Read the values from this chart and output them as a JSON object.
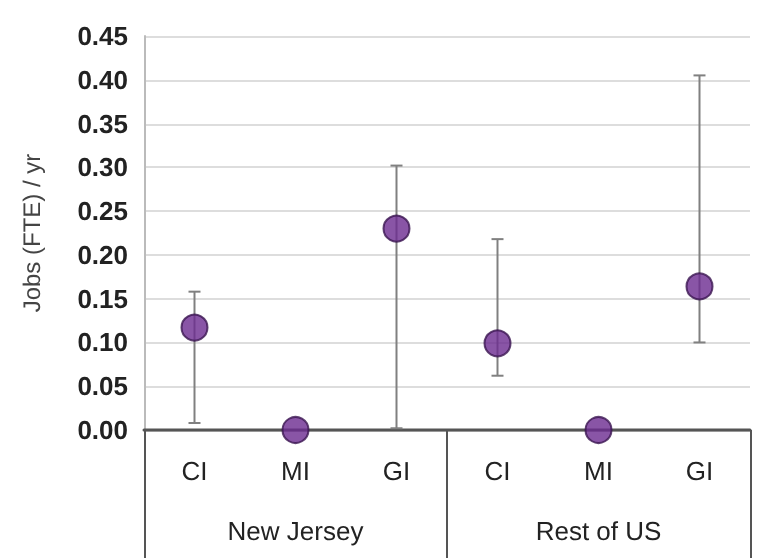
{
  "chart_data": {
    "type": "scatter",
    "ylabel": "Jobs (FTE) / yr",
    "categories": [
      "CI",
      "MI",
      "GI",
      "CI",
      "MI",
      "GI"
    ],
    "series": [
      {
        "color": "#6b2a90",
        "values": [
          0.117,
          0,
          0.23,
          0.099,
          0,
          0.164
        ],
        "errors": [
          [
            0.008,
            0.158
          ],
          null,
          [
            0.002,
            0.302
          ],
          [
            0.062,
            0.218
          ],
          null,
          [
            0.1,
            0.405
          ]
        ]
      }
    ],
    "ylim": [
      0,
      0.45
    ],
    "yticks": [
      {
        "value": 0,
        "label": "0.00"
      },
      0.05,
      {
        "value": 0.1,
        "label": "0.10"
      },
      0.15,
      {
        "value": 0.2,
        "label": "0.20"
      },
      0.25,
      {
        "value": 0.3,
        "label": "0.30"
      },
      0.35,
      {
        "value": 0.4,
        "label": "0.40"
      },
      0.45
    ],
    "grid": "y",
    "marker": "circle",
    "annotations": [
      "New Jersey",
      "Rest of US"
    ]
  }
}
